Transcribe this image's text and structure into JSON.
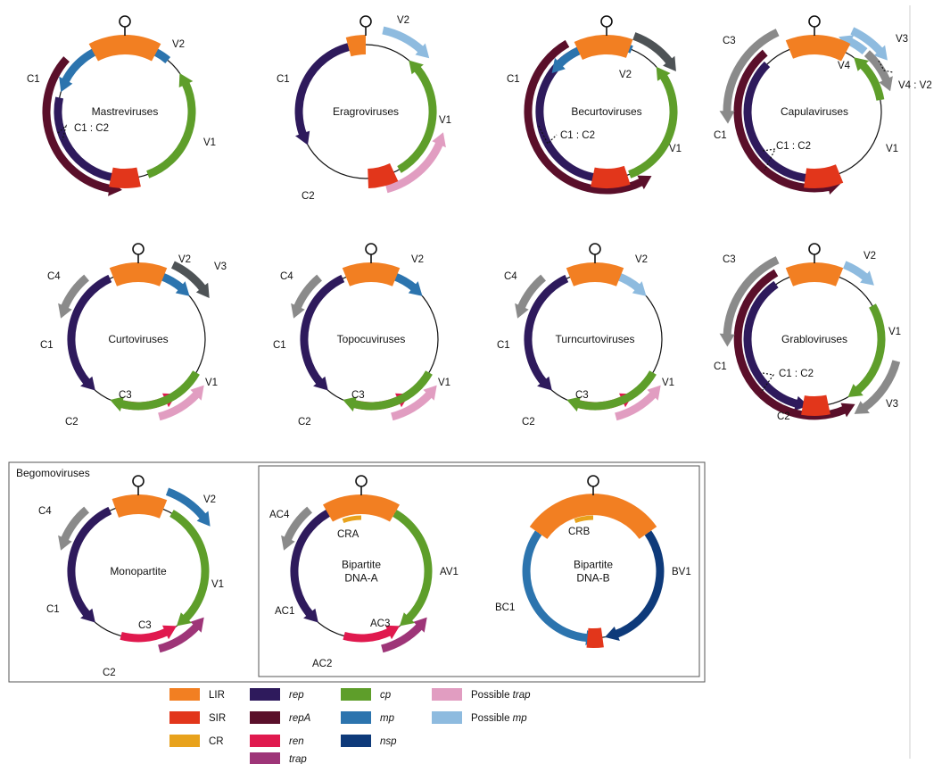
{
  "colors": {
    "LIR": "#F27F22",
    "SIR": "#E2361B",
    "CR": "#E8A21C",
    "rep": "#2E1A5C",
    "repA": "#5A0F2A",
    "ren": "#E0194E",
    "trap": "#9E3578",
    "cp": "#5E9E2A",
    "mp": "#2C74AE",
    "nsp": "#0E3A7A",
    "possible_trap": "#E19DC1",
    "possible_mp": "#8EBBDF",
    "grey": "#8A8A8A",
    "darkgrey": "#4E5356"
  },
  "genomes": [
    {
      "id": "mastre",
      "name": "Mastreviruses",
      "labels": [
        "C1",
        "V2",
        "V1",
        "C1 : C2"
      ]
    },
    {
      "id": "eragro",
      "name": "Eragroviruses",
      "labels": [
        "C1",
        "V2",
        "V1",
        "C2"
      ]
    },
    {
      "id": "becurto",
      "name": "Becurtoviruses",
      "labels": [
        "C1",
        "V2",
        "V1",
        "C1 : C2"
      ]
    },
    {
      "id": "capula",
      "name": "Capulaviruses",
      "labels": [
        "C3",
        "C1",
        "V3",
        "V4",
        "V4 : V2",
        "V1",
        "C1 : C2"
      ]
    },
    {
      "id": "curto",
      "name": "Curtoviruses",
      "labels": [
        "C4",
        "C1",
        "V2",
        "V3",
        "V1",
        "C3",
        "C2"
      ]
    },
    {
      "id": "topocu",
      "name": "Topocuviruses",
      "labels": [
        "C4",
        "C1",
        "V2",
        "V1",
        "C3",
        "C2"
      ]
    },
    {
      "id": "turncurto",
      "name": "Turncurtoviruses",
      "labels": [
        "C4",
        "C1",
        "V2",
        "V1",
        "C3",
        "C2"
      ]
    },
    {
      "id": "grablo",
      "name": "Grabloviruses",
      "labels": [
        "C3",
        "C1",
        "V2",
        "V1",
        "C1 : C2",
        "C2",
        "V3"
      ]
    },
    {
      "id": "mono",
      "name": "Monopartite",
      "labels": [
        "C4",
        "C1",
        "V2",
        "V1",
        "C3",
        "C2"
      ]
    },
    {
      "id": "dnaa",
      "name": "Bipartite\nDNA-A",
      "labels": [
        "AC4",
        "AC1",
        "AV1",
        "CRA",
        "AC3",
        "AC2"
      ]
    },
    {
      "id": "dnab",
      "name": "Bipartite\nDNA-B",
      "labels": [
        "BC1",
        "BV1",
        "CRB"
      ]
    }
  ],
  "boxes": {
    "begomo_title": "Begomoviruses"
  },
  "legend": [
    {
      "key": "LIR",
      "label": "LIR",
      "italic": false
    },
    {
      "key": "SIR",
      "label": "SIR",
      "italic": false
    },
    {
      "key": "CR",
      "label": "CR",
      "italic": false
    },
    {
      "key": "rep",
      "label": "rep",
      "italic": true
    },
    {
      "key": "repA",
      "label": "repA",
      "italic": true
    },
    {
      "key": "ren",
      "label": "ren",
      "italic": true
    },
    {
      "key": "trap",
      "label": "trap",
      "italic": true
    },
    {
      "key": "cp",
      "label": "cp",
      "italic": true
    },
    {
      "key": "mp",
      "label": "mp",
      "italic": true
    },
    {
      "key": "nsp",
      "label": "nsp",
      "italic": true
    },
    {
      "key": "possible_trap",
      "label": "Possible trap",
      "italic": false,
      "prefix": "Possible ",
      "it": "trap"
    },
    {
      "key": "possible_mp",
      "label": "Possible mp",
      "italic": false,
      "prefix": "Possible ",
      "it": "mp"
    }
  ]
}
